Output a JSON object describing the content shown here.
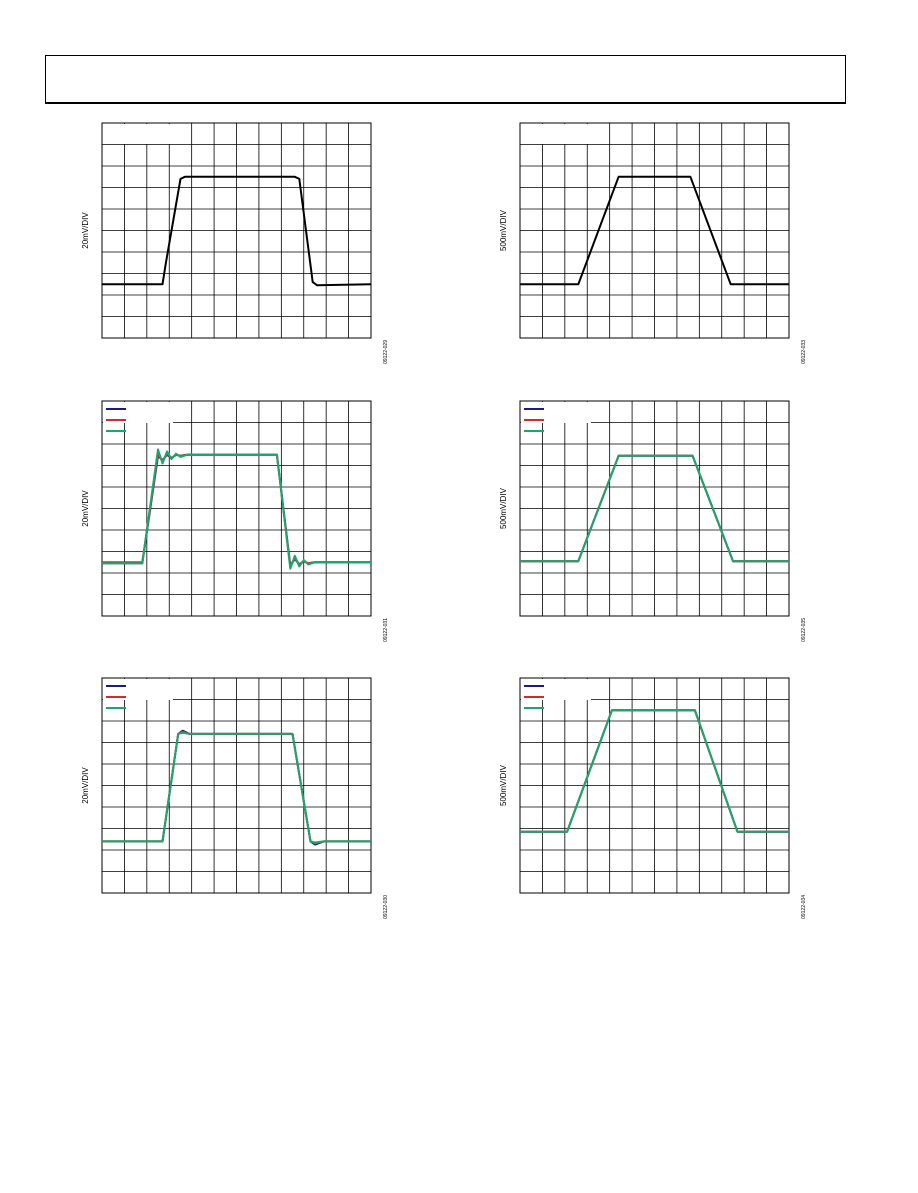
{
  "plots": [
    {
      "ylabel": "20mV/DIV",
      "figure_id": "09122-029",
      "xlim": [
        0,
        12
      ],
      "ylim": [
        0,
        10
      ],
      "x": [
        0,
        2.7,
        2.85,
        3.5,
        3.7,
        8.6,
        8.8,
        9.4,
        9.6,
        12
      ],
      "series": [
        {
          "color": "#000000",
          "values": [
            2.5,
            2.5,
            3.5,
            7.4,
            7.5,
            7.5,
            7.4,
            2.6,
            2.45,
            2.5
          ]
        }
      ]
    },
    {
      "ylabel": "500mV/DIV",
      "figure_id": "09122-033",
      "xlim": [
        0,
        12
      ],
      "ylim": [
        0,
        10
      ],
      "x": [
        0,
        2.6,
        4.4,
        7.6,
        9.4,
        12
      ],
      "series": [
        {
          "color": "#000000",
          "values": [
            2.5,
            2.5,
            7.5,
            7.5,
            2.5,
            2.5
          ]
        }
      ]
    },
    {
      "ylabel": "20mV/DIV",
      "figure_id": "09122-031",
      "xlim": [
        0,
        12
      ],
      "ylim": [
        0,
        10
      ],
      "x": [
        0,
        1.8,
        2.5,
        2.7,
        2.9,
        3.1,
        3.3,
        3.5,
        3.8,
        7.8,
        8.4,
        8.6,
        8.8,
        9.0,
        9.2,
        9.5,
        12
      ],
      "series": [
        {
          "color": "#1a1a8c",
          "values": [
            2.45,
            2.45,
            7.45,
            7.25,
            7.5,
            7.35,
            7.5,
            7.45,
            7.5,
            7.5,
            2.35,
            2.65,
            2.4,
            2.55,
            2.45,
            2.5,
            2.5
          ]
        },
        {
          "color": "#d42a2a",
          "values": [
            2.5,
            2.5,
            7.55,
            7.2,
            7.55,
            7.35,
            7.5,
            7.45,
            7.5,
            7.5,
            2.3,
            2.7,
            2.4,
            2.55,
            2.45,
            2.5,
            2.5
          ]
        },
        {
          "color": "#1aa86a",
          "values": [
            2.45,
            2.45,
            7.75,
            7.1,
            7.65,
            7.3,
            7.55,
            7.4,
            7.5,
            7.5,
            2.2,
            2.8,
            2.3,
            2.6,
            2.4,
            2.5,
            2.5
          ]
        }
      ]
    },
    {
      "ylabel": "500mV/DIV",
      "figure_id": "09122-035",
      "xlim": [
        0,
        12
      ],
      "ylim": [
        0,
        10
      ],
      "x": [
        0,
        2.6,
        4.4,
        7.7,
        9.5,
        12
      ],
      "series": [
        {
          "color": "#1a1a8c",
          "values": [
            2.55,
            2.55,
            7.45,
            7.45,
            2.55,
            2.55
          ]
        },
        {
          "color": "#d42a2a",
          "values": [
            2.55,
            2.55,
            7.45,
            7.45,
            2.55,
            2.55
          ]
        },
        {
          "color": "#1aa86a",
          "values": [
            2.55,
            2.55,
            7.45,
            7.45,
            2.55,
            2.55
          ]
        }
      ]
    },
    {
      "ylabel": "20mV/DIV",
      "figure_id": "09122-030",
      "xlim": [
        0,
        12
      ],
      "ylim": [
        0,
        10
      ],
      "x": [
        0,
        2.7,
        3.4,
        3.6,
        3.9,
        8.5,
        9.3,
        9.5,
        9.9,
        12
      ],
      "series": [
        {
          "color": "#1a1a8c",
          "values": [
            2.4,
            2.4,
            7.4,
            7.55,
            7.4,
            7.4,
            2.4,
            2.25,
            2.4,
            2.4
          ]
        },
        {
          "color": "#d42a2a",
          "values": [
            2.4,
            2.4,
            7.4,
            7.5,
            7.4,
            7.4,
            2.4,
            2.3,
            2.4,
            2.4
          ]
        },
        {
          "color": "#1aa86a",
          "values": [
            2.4,
            2.4,
            7.4,
            7.45,
            7.4,
            7.4,
            2.4,
            2.35,
            2.4,
            2.4
          ]
        }
      ]
    },
    {
      "ylabel": "500mV/DIV",
      "figure_id": "09122-034",
      "xlim": [
        0,
        12
      ],
      "ylim": [
        0,
        10
      ],
      "x": [
        0,
        2.1,
        4.1,
        7.8,
        9.7,
        12
      ],
      "series": [
        {
          "color": "#1a1a8c",
          "values": [
            2.85,
            2.85,
            8.5,
            8.5,
            2.85,
            2.85
          ]
        },
        {
          "color": "#d42a2a",
          "values": [
            2.85,
            2.85,
            8.5,
            8.5,
            2.85,
            2.85
          ]
        },
        {
          "color": "#1aa86a",
          "values": [
            2.85,
            2.85,
            8.5,
            8.5,
            2.85,
            2.85
          ]
        }
      ]
    }
  ]
}
